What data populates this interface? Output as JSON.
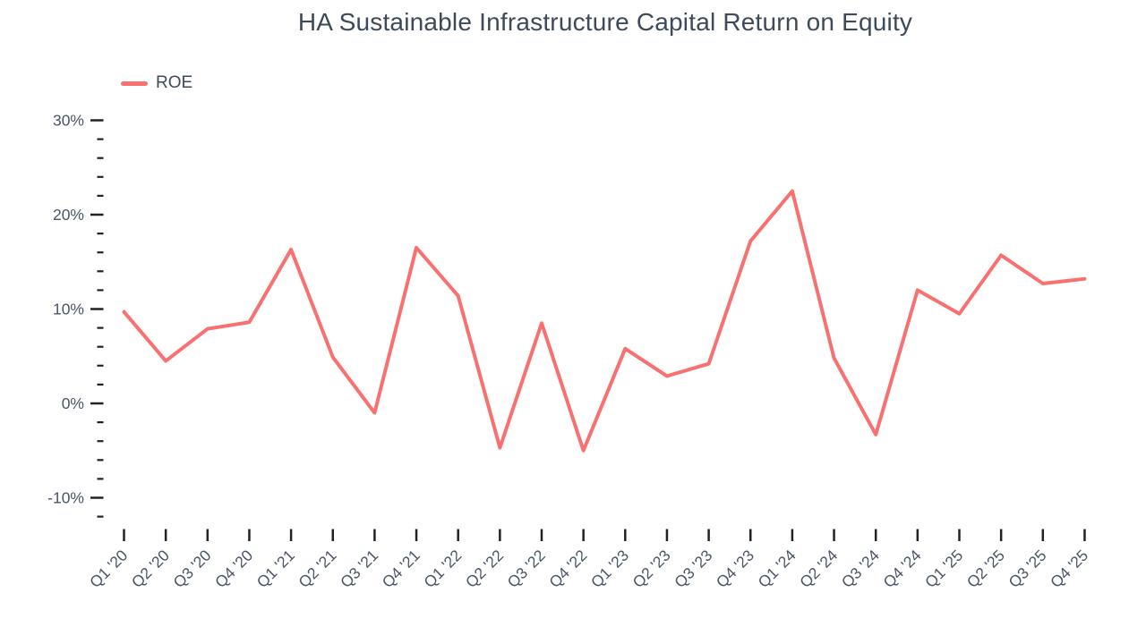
{
  "chart_data": {
    "type": "line",
    "title": "HA Sustainable Infrastructure Capital Return on Equity",
    "categories": [
      "Q1 '20",
      "Q2 '20",
      "Q3 '20",
      "Q4 '20",
      "Q1 '21",
      "Q2 '21",
      "Q3 '21",
      "Q4 '21",
      "Q1 '22",
      "Q2 '22",
      "Q3 '22",
      "Q4 '22",
      "Q1 '23",
      "Q2 '23",
      "Q3 '23",
      "Q4 '23",
      "Q1 '24",
      "Q2 '24",
      "Q3 '24",
      "Q4 '24",
      "Q1 '25",
      "Q2 '25",
      "Q3 '25",
      "Q4 '25"
    ],
    "series": [
      {
        "name": "ROE",
        "color": "#F87171",
        "values": [
          9.7,
          4.5,
          7.9,
          8.6,
          16.3,
          4.9,
          -1.0,
          16.5,
          11.4,
          -4.7,
          8.5,
          -5.0,
          5.8,
          2.9,
          4.2,
          17.2,
          22.5,
          4.8,
          -3.3,
          12.0,
          9.5,
          15.7,
          12.7,
          13.2
        ]
      }
    ],
    "xlabel": "",
    "ylabel": "",
    "y_axis": {
      "tick_labels": [
        "30%",
        "20%",
        "10%",
        "0%",
        "-10%"
      ],
      "tick_values": [
        30,
        20,
        10,
        0,
        -10
      ],
      "minor_tick_step": 2,
      "minor_tick_range": [
        -12,
        28
      ],
      "unit": "%"
    },
    "ylim": [
      -13,
      31
    ],
    "grid": false,
    "legend_position": "top-left",
    "colors": {
      "line": "#F87171",
      "tick_mark": "#222222",
      "tick_label": "#4a5568",
      "title_text": "#3e4a59"
    }
  }
}
